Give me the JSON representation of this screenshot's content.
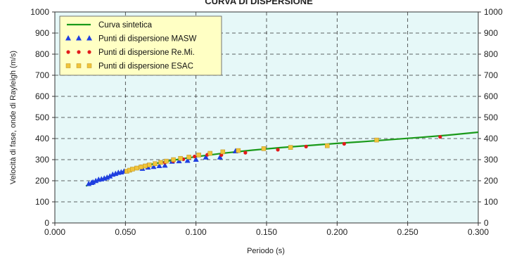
{
  "chart_data": {
    "type": "scatter",
    "title": "CURVA DI DISPERSIONE",
    "xlabel": "Periodo (s)",
    "ylabel": "Velocità di fase, onde di Rayleigh (m/s)",
    "xlim": [
      0.0,
      0.3
    ],
    "ylim": [
      0,
      1000
    ],
    "x_ticks": [
      "0.000",
      "0.050",
      "0.100",
      "0.150",
      "0.200",
      "0.250",
      "0.300"
    ],
    "y_ticks": [
      "0",
      "100",
      "200",
      "300",
      "400",
      "500",
      "600",
      "700",
      "800",
      "900",
      "1000"
    ],
    "grid": true,
    "legend_position": "top-left",
    "plot_background": "#e6f8f8",
    "series": [
      {
        "name": "Curva sintetica",
        "kind": "line",
        "color": "#1a9a1a",
        "points": [
          [
            0.022,
            175
          ],
          [
            0.03,
            198
          ],
          [
            0.04,
            225
          ],
          [
            0.05,
            247
          ],
          [
            0.06,
            265
          ],
          [
            0.07,
            280
          ],
          [
            0.08,
            293
          ],
          [
            0.09,
            304
          ],
          [
            0.1,
            314
          ],
          [
            0.12,
            331
          ],
          [
            0.14,
            345
          ],
          [
            0.16,
            357
          ],
          [
            0.18,
            367
          ],
          [
            0.2,
            377
          ],
          [
            0.22,
            386
          ],
          [
            0.24,
            396
          ],
          [
            0.26,
            406
          ],
          [
            0.28,
            417
          ],
          [
            0.3,
            430
          ]
        ]
      },
      {
        "name": "Punti di dispersione MASW",
        "kind": "triangle",
        "color": "#1f3fe0",
        "points": [
          [
            0.024,
            185
          ],
          [
            0.026,
            190
          ],
          [
            0.027,
            193
          ],
          [
            0.029,
            199
          ],
          [
            0.031,
            205
          ],
          [
            0.033,
            207
          ],
          [
            0.035,
            211
          ],
          [
            0.037,
            215
          ],
          [
            0.039,
            221
          ],
          [
            0.041,
            229
          ],
          [
            0.043,
            233
          ],
          [
            0.045,
            238
          ],
          [
            0.047,
            240
          ],
          [
            0.049,
            244
          ],
          [
            0.062,
            257
          ],
          [
            0.066,
            263
          ],
          [
            0.07,
            266
          ],
          [
            0.074,
            270
          ],
          [
            0.078,
            272
          ],
          [
            0.083,
            291
          ],
          [
            0.088,
            293
          ],
          [
            0.094,
            295
          ],
          [
            0.1,
            300
          ],
          [
            0.107,
            311
          ],
          [
            0.117,
            311
          ],
          [
            0.128,
            340
          ]
        ]
      },
      {
        "name": "Punti di dispersione Re.Mi.",
        "kind": "circle",
        "color": "#e21b1b",
        "points": [
          [
            0.061,
            268
          ],
          [
            0.066,
            276
          ],
          [
            0.071,
            280
          ],
          [
            0.078,
            286
          ],
          [
            0.084,
            293
          ],
          [
            0.091,
            302
          ],
          [
            0.099,
            315
          ],
          [
            0.108,
            323
          ],
          [
            0.118,
            322
          ],
          [
            0.135,
            333
          ],
          [
            0.158,
            347
          ],
          [
            0.178,
            362
          ],
          [
            0.205,
            375
          ],
          [
            0.273,
            408
          ]
        ]
      },
      {
        "name": "Punti di dispersione ESAC",
        "kind": "square",
        "color": "#f0c43a",
        "points": [
          [
            0.051,
            245
          ],
          [
            0.053,
            250
          ],
          [
            0.055,
            255
          ],
          [
            0.058,
            260
          ],
          [
            0.061,
            265
          ],
          [
            0.064,
            270
          ],
          [
            0.067,
            275
          ],
          [
            0.071,
            281
          ],
          [
            0.075,
            287
          ],
          [
            0.079,
            293
          ],
          [
            0.084,
            300
          ],
          [
            0.089,
            306
          ],
          [
            0.095,
            312
          ],
          [
            0.102,
            322
          ],
          [
            0.11,
            330
          ],
          [
            0.119,
            337
          ],
          [
            0.13,
            343
          ],
          [
            0.148,
            352
          ],
          [
            0.167,
            358
          ],
          [
            0.193,
            366
          ],
          [
            0.228,
            393
          ]
        ]
      }
    ]
  }
}
